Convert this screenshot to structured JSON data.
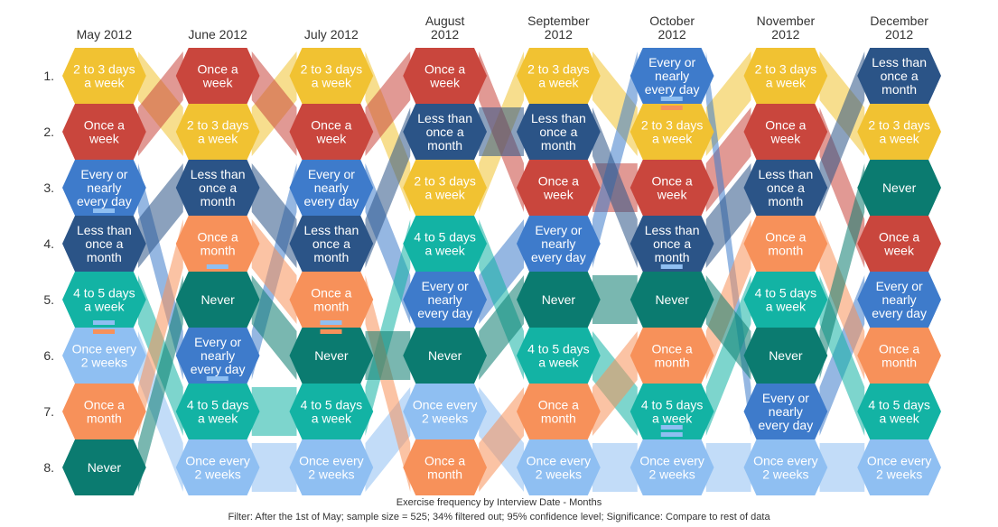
{
  "chart_data": {
    "type": "bump",
    "title": "Exercise frequency by Interview Date - Months",
    "subtitle": "Filter: After the 1st of May; sample size = 525; 34% filtered out; 95% confidence level; Significance: Compare to rest of data",
    "rank_labels": [
      "1.",
      "2.",
      "3.",
      "4.",
      "5.",
      "6.",
      "7.",
      "8."
    ],
    "months": [
      "May 2012",
      "June 2012",
      "July 2012",
      "August 2012",
      "September 2012",
      "October 2012",
      "November 2012",
      "December 2012"
    ],
    "categories": [
      {
        "name": "2 to 3 days a week",
        "color": "#F1C232",
        "ranks": [
          1,
          2,
          1,
          3,
          1,
          2,
          1,
          2
        ]
      },
      {
        "name": "Once a week",
        "color": "#C9463D",
        "ranks": [
          2,
          1,
          2,
          1,
          3,
          3,
          2,
          4
        ]
      },
      {
        "name": "Every or nearly every day",
        "color": "#3E7BCB",
        "ranks": [
          3,
          6,
          3,
          5,
          4,
          1,
          7,
          5
        ]
      },
      {
        "name": "Less than once a month",
        "color": "#2B5487",
        "ranks": [
          4,
          3,
          4,
          2,
          2,
          4,
          3,
          1
        ]
      },
      {
        "name": "4 to 5 days a week",
        "color": "#13B3A4",
        "ranks": [
          5,
          7,
          7,
          4,
          6,
          7,
          5,
          7
        ]
      },
      {
        "name": "Once every 2 weeks",
        "color": "#8FBFF2",
        "ranks": [
          6,
          8,
          8,
          7,
          8,
          8,
          8,
          8
        ]
      },
      {
        "name": "Once a month",
        "color": "#F7915A",
        "ranks": [
          7,
          4,
          5,
          8,
          7,
          6,
          4,
          6
        ]
      },
      {
        "name": "Never",
        "color": "#0B7B70",
        "ranks": [
          8,
          5,
          6,
          6,
          5,
          5,
          6,
          3
        ]
      }
    ],
    "labels": [
      [
        [
          "2 to 3 days",
          "a week"
        ],
        [
          "Once a",
          "week"
        ],
        [
          "Every or",
          "nearly",
          "every day"
        ],
        [
          "Less than",
          "once a",
          "month"
        ],
        [
          "4 to 5 days",
          "a week"
        ],
        [
          "Once every",
          "2 weeks"
        ],
        [
          "Once a",
          "month"
        ],
        [
          "Never"
        ]
      ],
      [
        [
          "Once a",
          "week"
        ],
        [
          "2 to 3 days",
          "a week"
        ],
        [
          "Less than",
          "once a",
          "month"
        ],
        [
          "Once a",
          "month"
        ],
        [
          "Never"
        ],
        [
          "Every or",
          "nearly",
          "every day"
        ],
        [
          "4 to 5 days",
          "a week"
        ],
        [
          "Once every",
          "2 weeks"
        ]
      ],
      [
        [
          "2 to 3 days",
          "a week"
        ],
        [
          "Once a",
          "week"
        ],
        [
          "Every or",
          "nearly",
          "every day"
        ],
        [
          "Less than",
          "once a",
          "month"
        ],
        [
          "Once a",
          "month"
        ],
        [
          "Never"
        ],
        [
          "4 to 5 days",
          "a week"
        ],
        [
          "Once every",
          "2 weeks"
        ]
      ],
      [
        [
          "Once a",
          "week"
        ],
        [
          "Less than",
          "once a",
          "month"
        ],
        [
          "2 to 3 days",
          "a week"
        ],
        [
          "4 to 5 days",
          "a week"
        ],
        [
          "Every or",
          "nearly",
          "every day"
        ],
        [
          "Never"
        ],
        [
          "Once every",
          "2 weeks"
        ],
        [
          "Once a",
          "month"
        ]
      ],
      [
        [
          "2 to 3 days",
          "a week"
        ],
        [
          "Less than",
          "once a",
          "month"
        ],
        [
          "Once a",
          "week"
        ],
        [
          "Every or",
          "nearly",
          "every day"
        ],
        [
          "Never"
        ],
        [
          "4 to 5 days",
          "a week"
        ],
        [
          "Once a",
          "month"
        ],
        [
          "Once every",
          "2 weeks"
        ]
      ],
      [
        [
          "Every or",
          "nearly",
          "every day"
        ],
        [
          "2 to 3 days",
          "a week"
        ],
        [
          "Once a",
          "week"
        ],
        [
          "Less than",
          "once a",
          "month"
        ],
        [
          "Never"
        ],
        [
          "Once a",
          "month"
        ],
        [
          "4 to 5 days",
          "a week"
        ],
        [
          "Once every",
          "2 weeks"
        ]
      ],
      [
        [
          "2 to 3 days",
          "a week"
        ],
        [
          "Once a",
          "week"
        ],
        [
          "Less than",
          "once a",
          "month"
        ],
        [
          "Once a",
          "month"
        ],
        [
          "4 to 5 days",
          "a week"
        ],
        [
          "Never"
        ],
        [
          "Every or",
          "nearly",
          "every day"
        ],
        [
          "Once every",
          "2 weeks"
        ]
      ],
      [
        [
          "Less than",
          "once a",
          "month"
        ],
        [
          "2 to 3 days",
          "a week"
        ],
        [
          "Never"
        ],
        [
          "Once a",
          "week"
        ],
        [
          "Every or",
          "nearly",
          "every day"
        ],
        [
          "Once a",
          "month"
        ],
        [
          "4 to 5 days",
          "a week"
        ],
        [
          "Once every",
          "2 weeks"
        ]
      ]
    ],
    "significance_marks": [
      {
        "month": 0,
        "rank": 3,
        "dir": "down"
      },
      {
        "month": 0,
        "rank": 5,
        "dir": "down"
      },
      {
        "month": 0,
        "rank": 6,
        "dir": "up"
      },
      {
        "month": 0,
        "rank": 6,
        "dir": "down"
      },
      {
        "month": 0,
        "rank": 7,
        "dir": "up"
      },
      {
        "month": 1,
        "rank": 4,
        "dir": "down"
      },
      {
        "month": 1,
        "rank": 6,
        "dir": "down"
      },
      {
        "month": 2,
        "rank": 5,
        "dir": "down"
      },
      {
        "month": 2,
        "rank": 6,
        "dir": "up"
      },
      {
        "month": 3,
        "rank": 8,
        "dir": "up"
      },
      {
        "month": 3,
        "rank": 8,
        "dir": "up2"
      },
      {
        "month": 5,
        "rank": 1,
        "dir": "down"
      },
      {
        "month": 5,
        "rank": 2,
        "dir": "up"
      },
      {
        "month": 5,
        "rank": 4,
        "dir": "down"
      },
      {
        "month": 5,
        "rank": 7,
        "dir": "down"
      },
      {
        "month": 5,
        "rank": 7,
        "dir": "down2"
      }
    ]
  }
}
